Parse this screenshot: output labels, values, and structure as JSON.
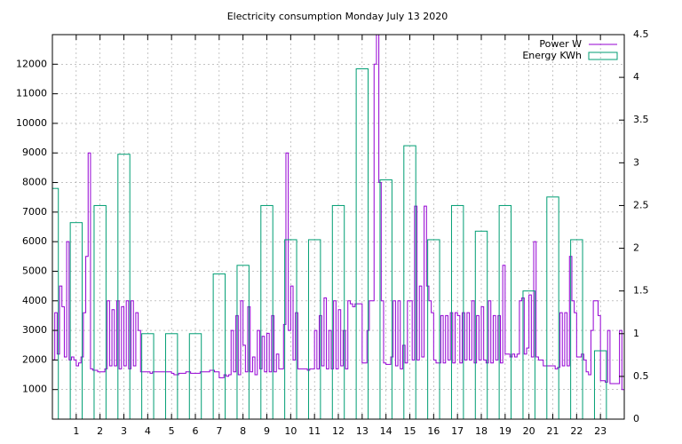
{
  "chart_data": {
    "type": "line",
    "title": "Electricity consumption Monday July 13 2020",
    "xlim": [
      0,
      24
    ],
    "xticks": [
      1,
      2,
      3,
      4,
      5,
      6,
      7,
      8,
      9,
      10,
      11,
      12,
      13,
      14,
      15,
      16,
      17,
      18,
      19,
      20,
      21,
      22,
      23
    ],
    "ylim": [
      0,
      13000
    ],
    "yticks": [
      1000,
      2000,
      3000,
      4000,
      5000,
      6000,
      7000,
      8000,
      9000,
      10000,
      11000,
      12000
    ],
    "y2lim": [
      0,
      4.5
    ],
    "y2ticks": [
      0,
      0.5,
      1,
      1.5,
      2,
      2.5,
      3,
      3.5,
      4,
      4.5
    ],
    "grid": true,
    "legend": "top-right",
    "series": [
      {
        "name": "Power W",
        "color": "#9400d3",
        "x": [
          0,
          0.1,
          0.2,
          0.3,
          0.4,
          0.5,
          0.6,
          0.7,
          0.8,
          0.9,
          1,
          1.1,
          1.2,
          1.3,
          1.4,
          1.5,
          1.6,
          1.7,
          1.8,
          1.9,
          2,
          2.1,
          2.2,
          2.3,
          2.4,
          2.5,
          2.6,
          2.7,
          2.8,
          2.9,
          3,
          3.1,
          3.2,
          3.3,
          3.4,
          3.5,
          3.6,
          3.7,
          3.8,
          3.9,
          4,
          4.1,
          4.2,
          4.3,
          4.4,
          4.5,
          4.6,
          4.7,
          4.8,
          4.9,
          5,
          5.1,
          5.2,
          5.3,
          5.4,
          5.5,
          5.6,
          5.7,
          5.8,
          5.9,
          6,
          6.1,
          6.2,
          6.3,
          6.4,
          6.5,
          6.6,
          6.7,
          6.8,
          6.9,
          7,
          7.1,
          7.2,
          7.3,
          7.4,
          7.5,
          7.6,
          7.7,
          7.8,
          7.9,
          8,
          8.1,
          8.2,
          8.3,
          8.4,
          8.5,
          8.6,
          8.7,
          8.8,
          8.9,
          9,
          9.1,
          9.2,
          9.3,
          9.4,
          9.5,
          9.6,
          9.7,
          9.8,
          9.9,
          10,
          10.1,
          10.2,
          10.3,
          10.4,
          10.5,
          10.6,
          10.7,
          10.8,
          10.9,
          11,
          11.1,
          11.2,
          11.3,
          11.4,
          11.5,
          11.6,
          11.7,
          11.8,
          11.9,
          12,
          12.1,
          12.2,
          12.3,
          12.4,
          12.5,
          12.6,
          12.7,
          12.8,
          12.9,
          13,
          13.1,
          13.2,
          13.3,
          13.4,
          13.5,
          13.6,
          13.7,
          13.8,
          13.9,
          14,
          14.1,
          14.2,
          14.3,
          14.4,
          14.5,
          14.6,
          14.7,
          14.8,
          14.9,
          15,
          15.1,
          15.2,
          15.3,
          15.4,
          15.5,
          15.6,
          15.7,
          15.8,
          15.9,
          16,
          16.1,
          16.2,
          16.3,
          16.4,
          16.5,
          16.6,
          16.7,
          16.8,
          16.9,
          17,
          17.1,
          17.2,
          17.3,
          17.4,
          17.5,
          17.6,
          17.7,
          17.8,
          17.9,
          18,
          18.1,
          18.2,
          18.3,
          18.4,
          18.5,
          18.6,
          18.7,
          18.8,
          18.9,
          19,
          19.1,
          19.2,
          19.3,
          19.4,
          19.5,
          19.6,
          19.7,
          19.8,
          19.9,
          20,
          20.1,
          20.2,
          20.3,
          20.4,
          20.5,
          20.6,
          20.7,
          20.8,
          20.9,
          21,
          21.1,
          21.2,
          21.3,
          21.4,
          21.5,
          21.6,
          21.7,
          21.8,
          21.9,
          22,
          22.1,
          22.2,
          22.3,
          22.4,
          22.5,
          22.6,
          22.7,
          22.8,
          22.9,
          23,
          23.1,
          23.2,
          23.3,
          23.4,
          23.5,
          23.6,
          23.7,
          23.8,
          23.9,
          24
        ],
        "values": [
          2000,
          3600,
          2200,
          4500,
          3800,
          2100,
          6000,
          2000,
          2100,
          2000,
          1800,
          1900,
          2100,
          3600,
          5500,
          9000,
          1700,
          1650,
          1650,
          1600,
          1600,
          1600,
          1700,
          4000,
          1800,
          3700,
          1800,
          4000,
          1700,
          3800,
          1800,
          4000,
          1700,
          4000,
          1800,
          3600,
          3000,
          1600,
          1600,
          1600,
          1600,
          1550,
          1600,
          1600,
          1600,
          1600,
          1600,
          1600,
          1600,
          1600,
          1550,
          1500,
          1500,
          1550,
          1550,
          1550,
          1600,
          1600,
          1550,
          1550,
          1550,
          1550,
          1600,
          1600,
          1600,
          1600,
          1650,
          1650,
          1600,
          1600,
          1400,
          1400,
          1500,
          1450,
          1500,
          3000,
          1600,
          3500,
          1500,
          4000,
          2500,
          1600,
          3800,
          1600,
          2100,
          1500,
          3000,
          1700,
          2800,
          1600,
          2900,
          1600,
          3500,
          1600,
          2200,
          1700,
          1700,
          3200,
          9000,
          3000,
          4500,
          2000,
          3600,
          1700,
          1700,
          1700,
          1700,
          1650,
          1700,
          1700,
          3000,
          1700,
          3500,
          1800,
          4100,
          1700,
          3000,
          1700,
          4000,
          1700,
          3700,
          1800,
          3000,
          1700,
          4000,
          3900,
          3800,
          3900,
          3900,
          3900,
          1900,
          1900,
          3000,
          4000,
          4000,
          12000,
          13000,
          8000,
          4000,
          1900,
          1850,
          1850,
          2100,
          4000,
          1800,
          4000,
          1700,
          2500,
          1900,
          4000,
          4000,
          2000,
          7200,
          2000,
          4500,
          2100,
          7200,
          4500,
          4000,
          3600,
          2000,
          1900,
          1900,
          3500,
          1900,
          3500,
          2000,
          3600,
          1900,
          3600,
          3500,
          1900,
          3600,
          2000,
          3600,
          2000,
          4000,
          1900,
          3500,
          2000,
          3800,
          2000,
          1900,
          4000,
          1900,
          3500,
          2000,
          3500,
          1900,
          5200,
          2200,
          2200,
          2100,
          2200,
          2100,
          2200,
          4000,
          4100,
          2200,
          2400,
          4200,
          2100,
          6000,
          2100,
          2000,
          2000,
          1800,
          1800,
          1800,
          1800,
          1800,
          1700,
          1750,
          3600,
          1800,
          3600,
          1800,
          5500,
          4000,
          3600,
          2100,
          2100,
          2200,
          2000,
          1600,
          1500,
          3000,
          4000,
          4000,
          3500,
          1300,
          1300,
          1250,
          3000,
          1200,
          1200,
          1200,
          1200,
          3000,
          1000,
          1400
        ]
      },
      {
        "name": "Energy KWh",
        "color": "#009e73",
        "type": "bar",
        "axis": "y2",
        "x": [
          0,
          1,
          2,
          3,
          4,
          5,
          6,
          7,
          8,
          9,
          10,
          11,
          12,
          13,
          14,
          15,
          16,
          17,
          18,
          19,
          20,
          21,
          22,
          23
        ],
        "values": [
          2.7,
          2.3,
          2.5,
          3.1,
          1.0,
          1.0,
          1.0,
          1.7,
          1.8,
          2.5,
          2.1,
          2.1,
          2.5,
          4.1,
          2.8,
          3.2,
          2.1,
          2.5,
          2.2,
          2.5,
          1.5,
          2.6,
          2.1,
          0.8
        ]
      }
    ]
  }
}
